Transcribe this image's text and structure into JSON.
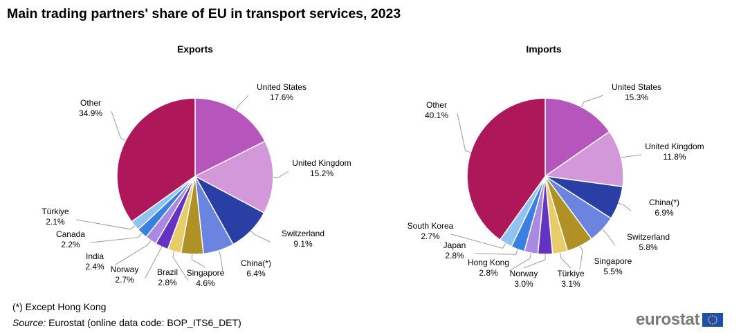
{
  "title": "Main trading partners' share of EU in transport services, 2023",
  "footnote": "(*) Except Hong Kong",
  "source_prefix": "Source:",
  "source_text": " Eurostat (online data code: BOP_ITS6_DET)",
  "logo_text": "eurostat",
  "chart_data": [
    {
      "type": "pie",
      "title": "Exports",
      "unit": "%",
      "slices": [
        {
          "label": "United States",
          "value": 17.6,
          "display": "17.6%",
          "color": "#b656bd"
        },
        {
          "label": "United Kingdom",
          "value": 15.2,
          "display": "15.2%",
          "color": "#d398d9"
        },
        {
          "label": "Switzerland",
          "value": 9.1,
          "display": "9.1%",
          "color": "#2a3fa6"
        },
        {
          "label": "China(*)",
          "value": 6.4,
          "display": "6.4%",
          "color": "#6a84e0"
        },
        {
          "label": "Singapore",
          "value": 4.6,
          "display": "4.6%",
          "color": "#b09125"
        },
        {
          "label": "Brazil",
          "value": 2.8,
          "display": "2.8%",
          "color": "#e8cc6a"
        },
        {
          "label": "Norway",
          "value": 2.7,
          "display": "2.7%",
          "color": "#6433c2"
        },
        {
          "label": "India",
          "value": 2.4,
          "display": "2.4%",
          "color": "#a98ae3"
        },
        {
          "label": "Canada",
          "value": 2.2,
          "display": "2.2%",
          "color": "#3a80e0"
        },
        {
          "label": "Türkiye",
          "value": 2.1,
          "display": "2.1%",
          "color": "#90c2f2"
        },
        {
          "label": "Other",
          "value": 34.9,
          "display": "34.9%",
          "color": "#ae1759"
        }
      ]
    },
    {
      "type": "pie",
      "title": "Imports",
      "unit": "%",
      "slices": [
        {
          "label": "United States",
          "value": 15.3,
          "display": "15.3%",
          "color": "#b656bd"
        },
        {
          "label": "United Kingdom",
          "value": 11.8,
          "display": "11.8%",
          "color": "#d398d9"
        },
        {
          "label": "China(*)",
          "value": 6.9,
          "display": "6.9%",
          "color": "#2a3fa6"
        },
        {
          "label": "Switzerland",
          "value": 5.8,
          "display": "5.8%",
          "color": "#6a84e0"
        },
        {
          "label": "Singapore",
          "value": 5.5,
          "display": "5.5%",
          "color": "#b09125"
        },
        {
          "label": "Türkiye",
          "value": 3.1,
          "display": "3.1%",
          "color": "#e8cc6a"
        },
        {
          "label": "Norway",
          "value": 3.0,
          "display": "3.0%",
          "color": "#6433c2"
        },
        {
          "label": "Hong Kong",
          "value": 2.8,
          "display": "2.8%",
          "color": "#a98ae3"
        },
        {
          "label": "Japan",
          "value": 2.8,
          "display": "2.8%",
          "color": "#3a80e0"
        },
        {
          "label": "South Korea",
          "value": 2.7,
          "display": "2.7%",
          "color": "#90c2f2"
        },
        {
          "label": "Other",
          "value": 40.1,
          "display": "40.1%",
          "color": "#ae1759"
        }
      ]
    }
  ]
}
